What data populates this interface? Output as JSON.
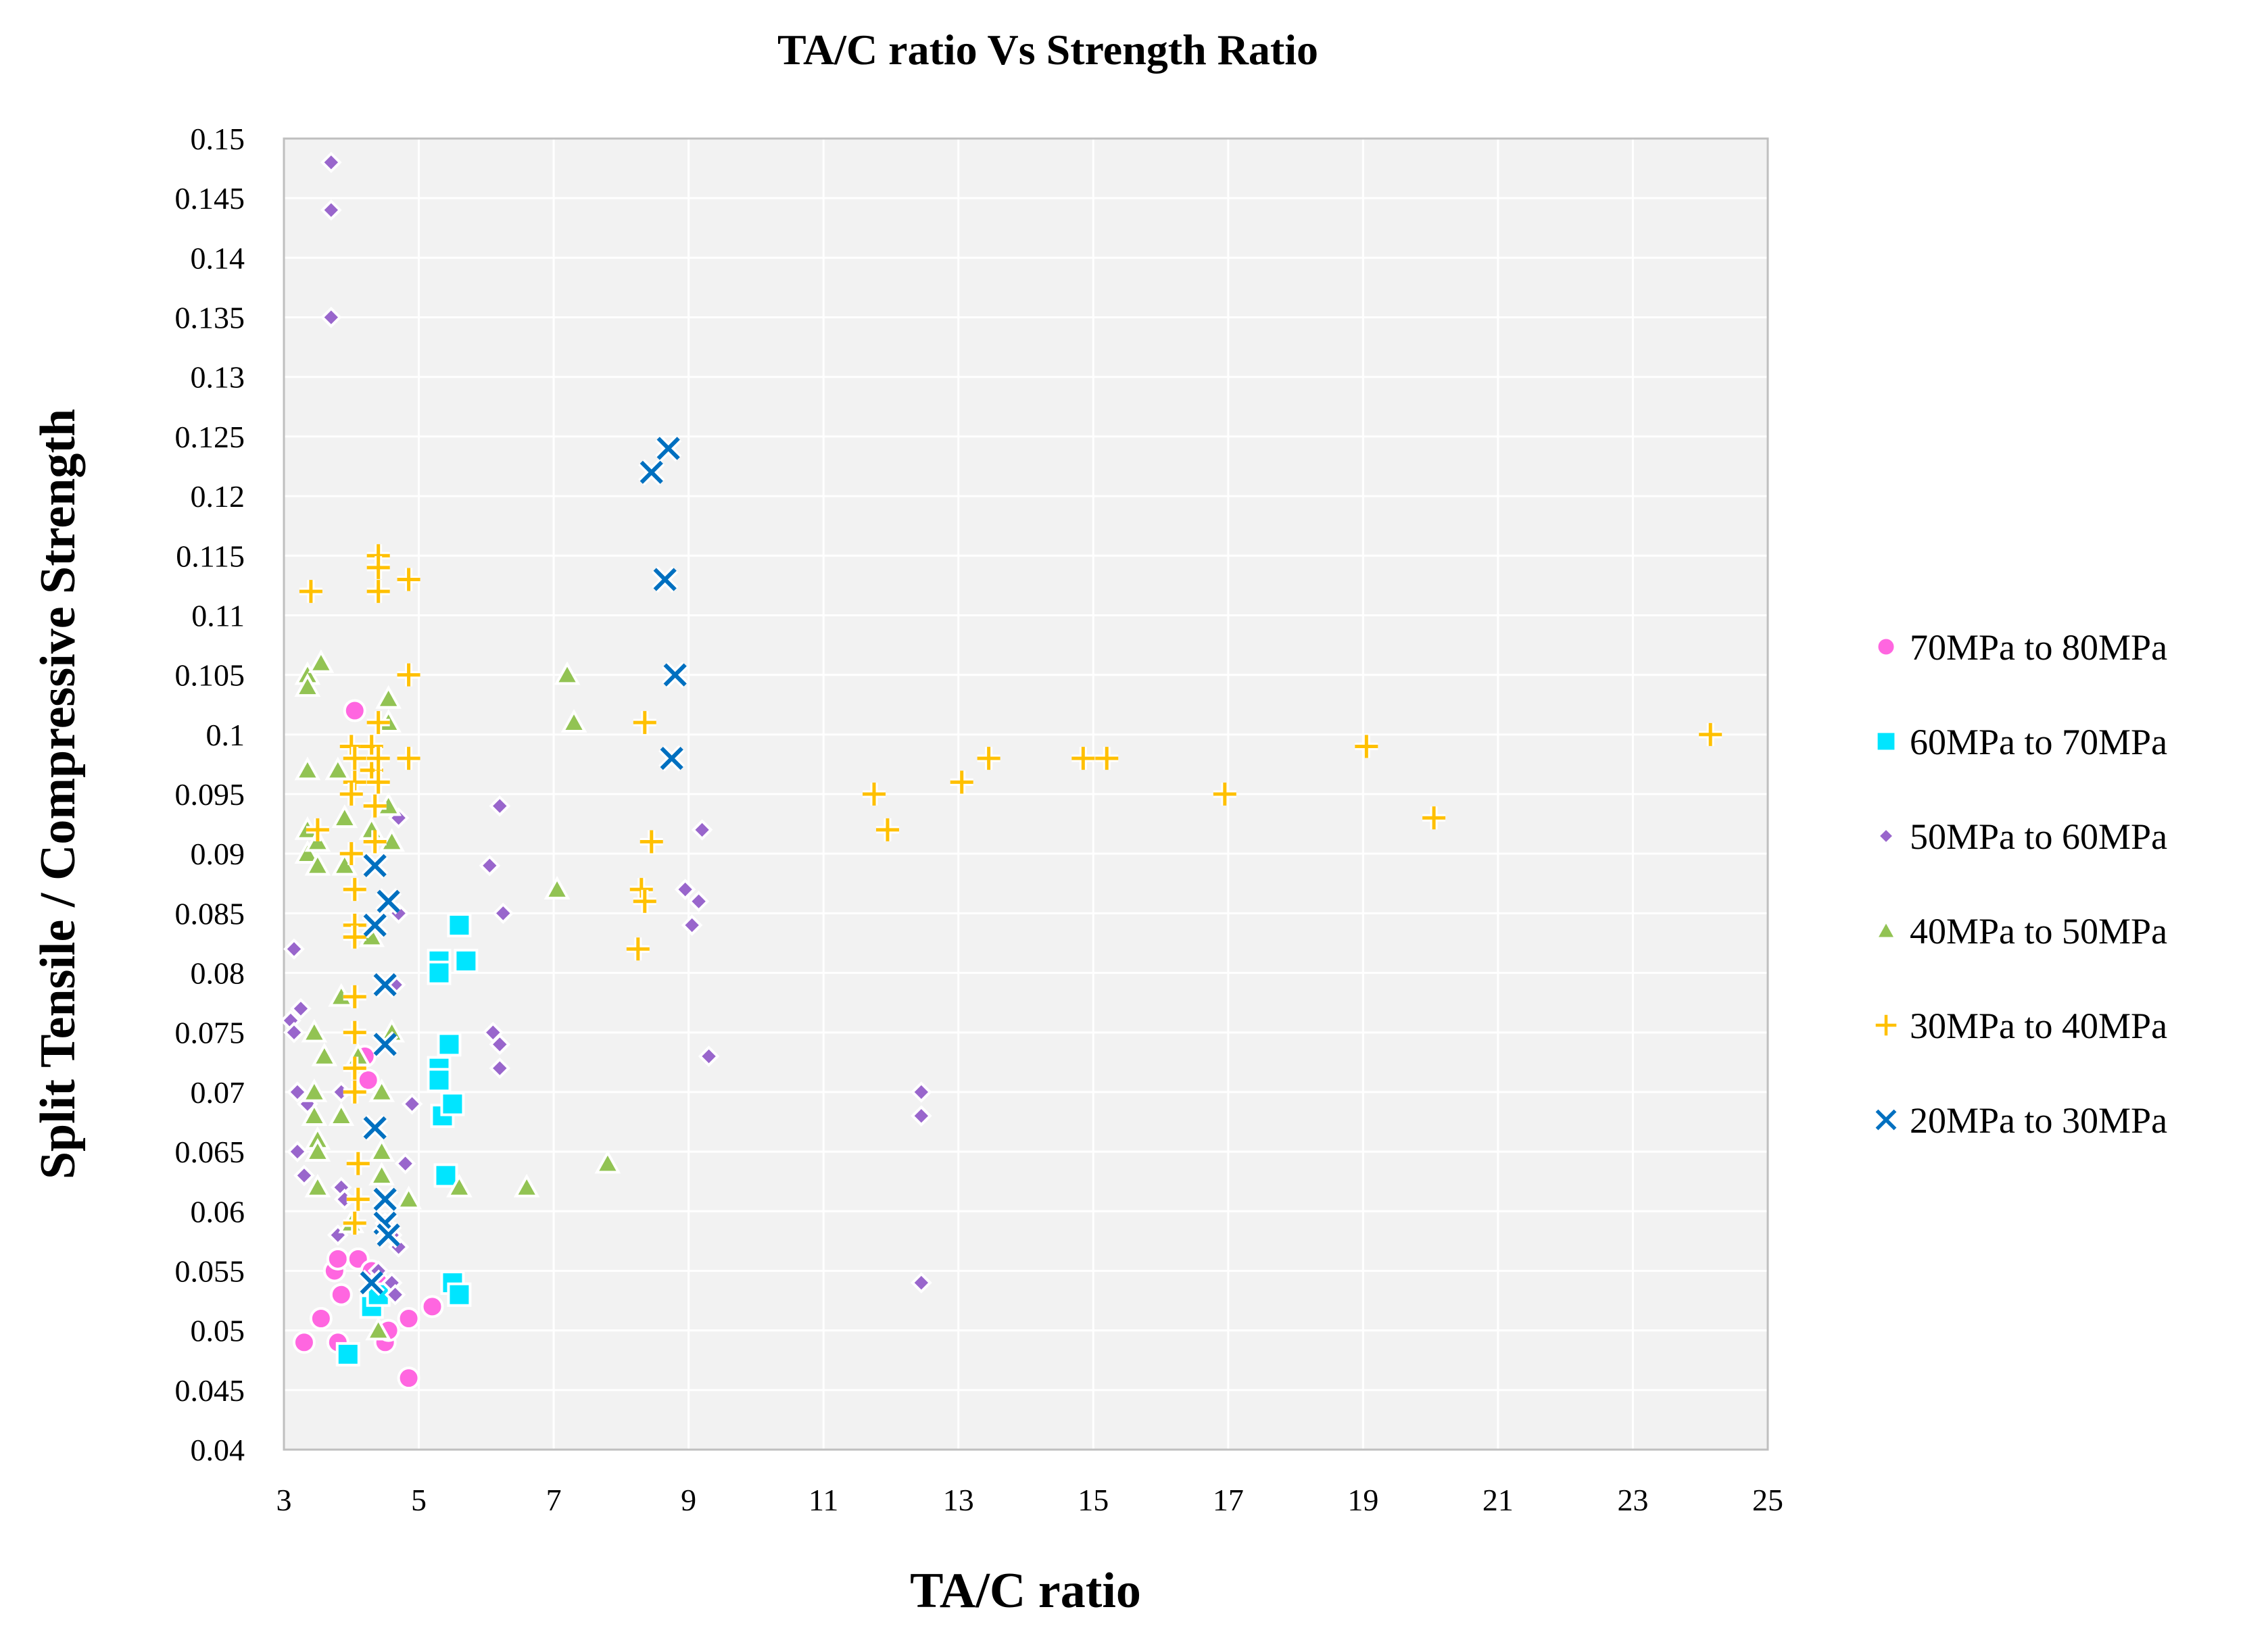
{
  "chart_data": {
    "type": "scatter",
    "title": "TA/C ratio Vs Strength Ratio",
    "xlabel": "TA/C ratio",
    "ylabel": "Split Tensile / Compressive Strength",
    "xlim": [
      3,
      25
    ],
    "ylim": [
      0.04,
      0.15
    ],
    "xticks": [
      3,
      5,
      7,
      9,
      11,
      13,
      15,
      17,
      19,
      21,
      23,
      25
    ],
    "xtick_labels": [
      "3",
      "5",
      "7",
      "9",
      "11",
      "13",
      "15",
      "17",
      "19",
      "21",
      "23",
      "25"
    ],
    "yticks": [
      0.04,
      0.045,
      0.05,
      0.055,
      0.06,
      0.065,
      0.07,
      0.075,
      0.08,
      0.085,
      0.09,
      0.095,
      0.1,
      0.105,
      0.11,
      0.115,
      0.12,
      0.125,
      0.13,
      0.135,
      0.14,
      0.145,
      0.15
    ],
    "ytick_labels": [
      "0.04",
      "0.045",
      "0.05",
      "0.055",
      "0.06",
      "0.065",
      "0.07",
      "0.075",
      "0.08",
      "0.085",
      "0.09",
      "0.095",
      "0.1",
      "0.105",
      "0.11",
      "0.115",
      "0.12",
      "0.125",
      "0.13",
      "0.135",
      "0.14",
      "0.145",
      "0.15"
    ],
    "grid": true,
    "legend_position": "right",
    "series": [
      {
        "name": "70MPa to 80MPa",
        "marker": "circle",
        "color": "#FF66E0",
        "points": [
          [
            3.3,
            0.049
          ],
          [
            3.55,
            0.051
          ],
          [
            3.75,
            0.055
          ],
          [
            3.8,
            0.056
          ],
          [
            3.85,
            0.053
          ],
          [
            3.8,
            0.049
          ],
          [
            4.05,
            0.102
          ],
          [
            4.1,
            0.056
          ],
          [
            4.2,
            0.073
          ],
          [
            4.25,
            0.071
          ],
          [
            4.3,
            0.055
          ],
          [
            4.4,
            0.054
          ],
          [
            4.5,
            0.049
          ],
          [
            4.55,
            0.05
          ],
          [
            4.85,
            0.046
          ],
          [
            4.85,
            0.051
          ],
          [
            5.2,
            0.052
          ]
        ]
      },
      {
        "name": "60MPa to 70MPa",
        "marker": "square",
        "color": "#00E5FF",
        "points": [
          [
            3.95,
            0.048
          ],
          [
            4.3,
            0.052
          ],
          [
            4.4,
            0.053
          ],
          [
            5.3,
            0.081
          ],
          [
            5.3,
            0.08
          ],
          [
            5.3,
            0.072
          ],
          [
            5.3,
            0.071
          ],
          [
            5.35,
            0.068
          ],
          [
            5.4,
            0.063
          ],
          [
            5.45,
            0.074
          ],
          [
            5.5,
            0.054
          ],
          [
            5.5,
            0.069
          ],
          [
            5.6,
            0.084
          ],
          [
            5.6,
            0.053
          ],
          [
            5.7,
            0.081
          ]
        ]
      },
      {
        "name": "50MPa to 60MPa",
        "marker": "diamond",
        "color": "#9966CC",
        "points": [
          [
            3.7,
            0.148
          ],
          [
            3.7,
            0.144
          ],
          [
            3.7,
            0.135
          ],
          [
            3.15,
            0.082
          ],
          [
            3.1,
            0.076
          ],
          [
            3.15,
            0.075
          ],
          [
            3.25,
            0.077
          ],
          [
            3.2,
            0.07
          ],
          [
            3.2,
            0.065
          ],
          [
            3.3,
            0.063
          ],
          [
            3.35,
            0.069
          ],
          [
            3.85,
            0.07
          ],
          [
            3.85,
            0.062
          ],
          [
            3.9,
            0.061
          ],
          [
            3.8,
            0.058
          ],
          [
            4.4,
            0.055
          ],
          [
            4.6,
            0.054
          ],
          [
            4.65,
            0.053
          ],
          [
            4.7,
            0.057
          ],
          [
            4.8,
            0.064
          ],
          [
            4.9,
            0.069
          ],
          [
            4.65,
            0.079
          ],
          [
            4.7,
            0.085
          ],
          [
            4.7,
            0.093
          ],
          [
            4.5,
            0.059
          ],
          [
            4.6,
            0.058
          ],
          [
            6.05,
            0.089
          ],
          [
            6.1,
            0.075
          ],
          [
            6.2,
            0.094
          ],
          [
            6.25,
            0.085
          ],
          [
            6.2,
            0.074
          ],
          [
            6.2,
            0.072
          ],
          [
            8.95,
            0.087
          ],
          [
            9.05,
            0.084
          ],
          [
            9.15,
            0.086
          ],
          [
            9.2,
            0.092
          ],
          [
            9.3,
            0.073
          ],
          [
            12.45,
            0.07
          ],
          [
            12.45,
            0.068
          ],
          [
            12.45,
            0.054
          ]
        ]
      },
      {
        "name": "40MPa to 50MPa",
        "marker": "triangle",
        "color": "#92C353",
        "points": [
          [
            3.35,
            0.105
          ],
          [
            3.35,
            0.104
          ],
          [
            3.55,
            0.106
          ],
          [
            3.35,
            0.097
          ],
          [
            3.35,
            0.092
          ],
          [
            3.35,
            0.09
          ],
          [
            3.5,
            0.091
          ],
          [
            3.5,
            0.089
          ],
          [
            3.45,
            0.075
          ],
          [
            3.45,
            0.07
          ],
          [
            3.45,
            0.068
          ],
          [
            3.5,
            0.066
          ],
          [
            3.5,
            0.065
          ],
          [
            3.5,
            0.062
          ],
          [
            3.6,
            0.073
          ],
          [
            3.8,
            0.097
          ],
          [
            3.9,
            0.093
          ],
          [
            3.9,
            0.089
          ],
          [
            3.85,
            0.078
          ],
          [
            3.85,
            0.068
          ],
          [
            4.0,
            0.059
          ],
          [
            4.1,
            0.073
          ],
          [
            4.3,
            0.092
          ],
          [
            4.3,
            0.083
          ],
          [
            4.45,
            0.07
          ],
          [
            4.45,
            0.065
          ],
          [
            4.45,
            0.063
          ],
          [
            4.4,
            0.05
          ],
          [
            4.55,
            0.103
          ],
          [
            4.55,
            0.101
          ],
          [
            4.55,
            0.094
          ],
          [
            4.6,
            0.091
          ],
          [
            4.6,
            0.075
          ],
          [
            4.85,
            0.061
          ],
          [
            5.6,
            0.062
          ],
          [
            6.6,
            0.062
          ],
          [
            7.05,
            0.087
          ],
          [
            7.2,
            0.105
          ],
          [
            7.3,
            0.101
          ],
          [
            7.8,
            0.064
          ]
        ]
      },
      {
        "name": "30MPa to 40MPa",
        "marker": "plus",
        "color": "#FFC000",
        "points": [
          [
            3.4,
            0.112
          ],
          [
            3.5,
            0.092
          ],
          [
            4.0,
            0.099
          ],
          [
            4.05,
            0.098
          ],
          [
            4.05,
            0.096
          ],
          [
            4.0,
            0.095
          ],
          [
            4.0,
            0.09
          ],
          [
            4.05,
            0.087
          ],
          [
            4.05,
            0.084
          ],
          [
            4.05,
            0.083
          ],
          [
            4.05,
            0.078
          ],
          [
            4.05,
            0.075
          ],
          [
            4.05,
            0.072
          ],
          [
            4.05,
            0.07
          ],
          [
            4.1,
            0.064
          ],
          [
            4.1,
            0.061
          ],
          [
            4.05,
            0.059
          ],
          [
            4.3,
            0.099
          ],
          [
            4.3,
            0.097
          ],
          [
            4.35,
            0.094
          ],
          [
            4.35,
            0.091
          ],
          [
            4.4,
            0.101
          ],
          [
            4.4,
            0.098
          ],
          [
            4.4,
            0.096
          ],
          [
            4.4,
            0.115
          ],
          [
            4.4,
            0.114
          ],
          [
            4.4,
            0.112
          ],
          [
            4.85,
            0.113
          ],
          [
            4.85,
            0.105
          ],
          [
            4.85,
            0.098
          ],
          [
            8.25,
            0.082
          ],
          [
            8.3,
            0.087
          ],
          [
            8.35,
            0.086
          ],
          [
            8.35,
            0.101
          ],
          [
            8.45,
            0.091
          ],
          [
            11.75,
            0.095
          ],
          [
            11.95,
            0.092
          ],
          [
            13.05,
            0.096
          ],
          [
            13.45,
            0.098
          ],
          [
            14.85,
            0.098
          ],
          [
            15.2,
            0.098
          ],
          [
            16.95,
            0.095
          ],
          [
            19.05,
            0.099
          ],
          [
            20.05,
            0.093
          ],
          [
            24.15,
            0.1
          ]
        ]
      },
      {
        "name": "20MPa to 30MPa",
        "marker": "x",
        "color": "#0070C0",
        "points": [
          [
            4.35,
            0.089
          ],
          [
            4.35,
            0.084
          ],
          [
            4.35,
            0.067
          ],
          [
            4.3,
            0.054
          ],
          [
            4.55,
            0.086
          ],
          [
            4.5,
            0.079
          ],
          [
            4.5,
            0.074
          ],
          [
            4.5,
            0.061
          ],
          [
            4.5,
            0.059
          ],
          [
            4.55,
            0.058
          ],
          [
            8.45,
            0.122
          ],
          [
            8.7,
            0.124
          ],
          [
            8.65,
            0.113
          ],
          [
            8.8,
            0.105
          ],
          [
            8.75,
            0.098
          ]
        ]
      }
    ]
  }
}
